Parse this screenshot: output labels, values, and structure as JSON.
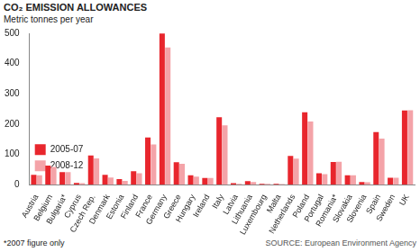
{
  "chart_data": {
    "type": "bar",
    "title": "CO₂ EMISSION ALLOWANCES",
    "subtitle": "Metric tonnes per year",
    "note": "*2007 figure only",
    "source": "SOURCE: European Environment Agency",
    "categories": [
      "Austria",
      "Belgium",
      "Bulgaria*",
      "Cyprus",
      "Czech Rep.",
      "Denmark",
      "Estonia",
      "Finland",
      "France",
      "Germany",
      "Greece",
      "Hungary",
      "Ireland",
      "Italy",
      "Latvia",
      "Lithuania",
      "Luxembourg",
      "Malta",
      "Netherlands",
      "Poland",
      "Portugal",
      "Romania*",
      "Slovakia",
      "Slovenia",
      "Spain",
      "Sweden",
      "UK"
    ],
    "series": [
      {
        "name": "2005-07",
        "color": "#e8262d",
        "values": [
          33,
          63,
          42,
          6,
          97,
          33,
          19,
          45,
          156,
          499,
          74,
          31,
          22,
          223,
          5,
          12,
          3,
          3,
          95,
          239,
          38,
          75,
          31,
          9,
          174,
          23,
          245
        ]
      },
      {
        "name": "2008-12",
        "color": "#f4a3a8",
        "values": [
          31,
          59,
          42,
          5,
          87,
          24,
          13,
          38,
          133,
          453,
          69,
          27,
          22,
          196,
          3,
          9,
          3,
          2,
          86,
          209,
          35,
          76,
          31,
          8,
          152,
          23,
          246
        ]
      }
    ],
    "ylim": [
      0,
      500
    ],
    "yticks": [
      0,
      100,
      200,
      300,
      400,
      500
    ],
    "grid": false,
    "legend": "top right"
  }
}
